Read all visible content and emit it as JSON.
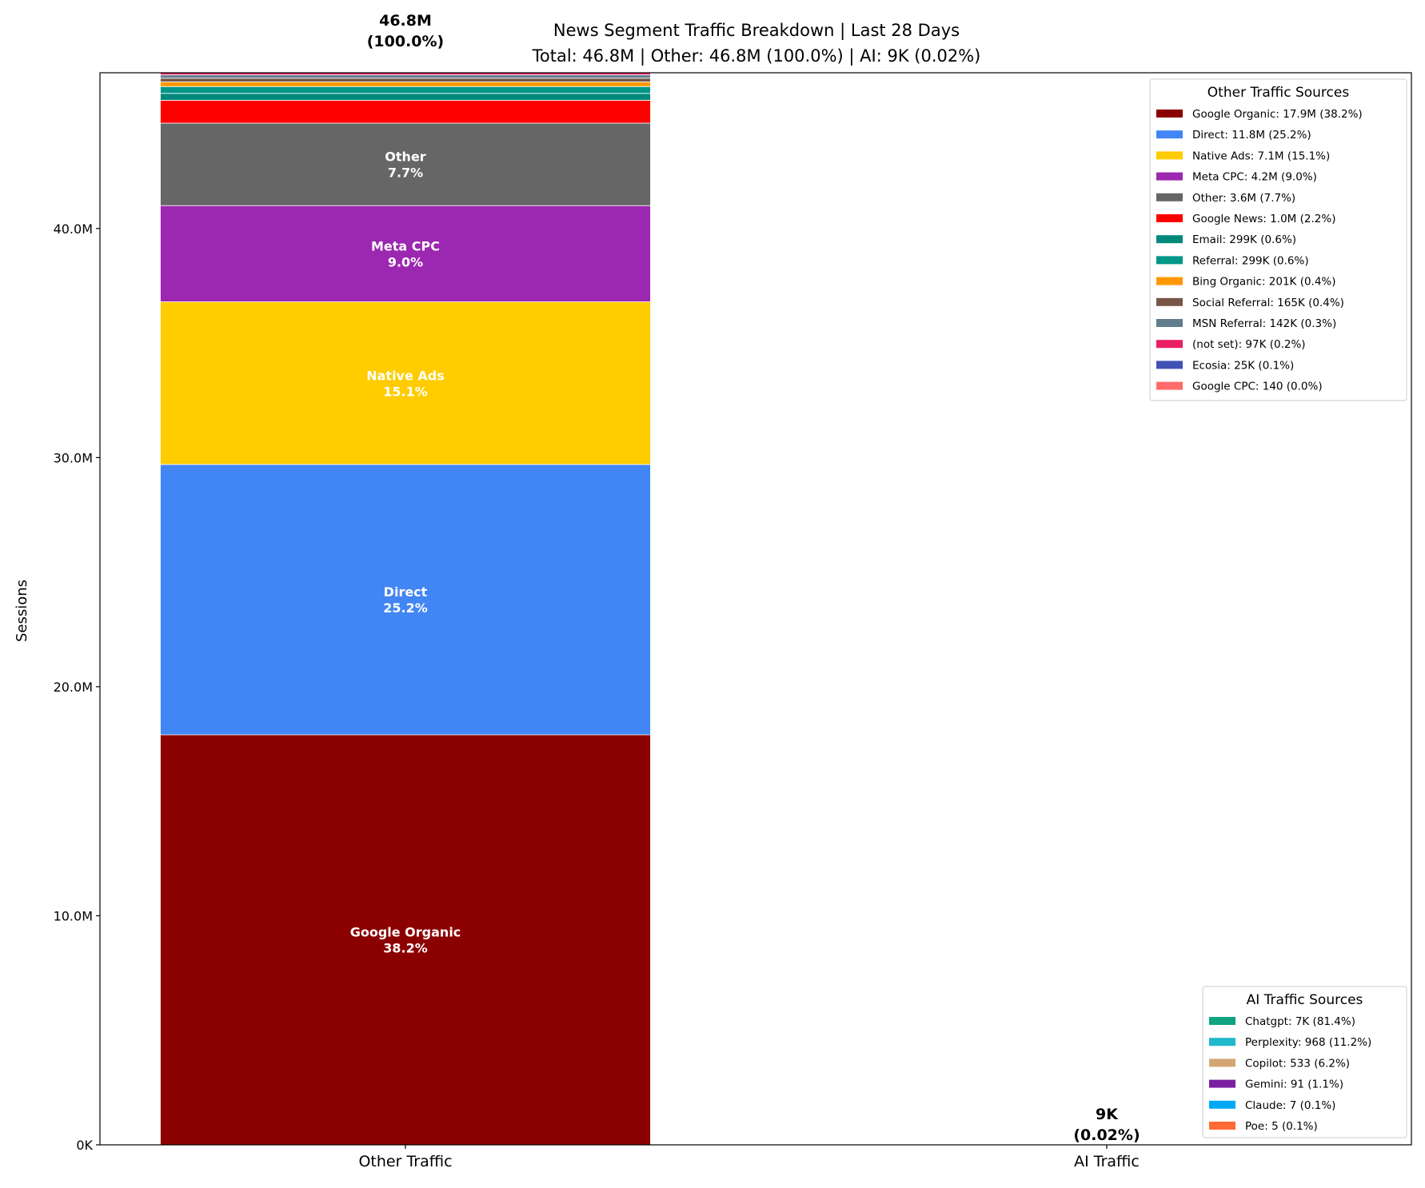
{
  "chart_data": {
    "type": "bar",
    "stacked": true,
    "title": "News Segment Traffic Breakdown | Last 28 Days",
    "subtitle": "Total: 46.8M | Other: 46.8M (100.0%) | AI: 9K (0.02%)",
    "xlabel": "",
    "ylabel": "Sessions",
    "categories": [
      "Other Traffic",
      "AI Traffic"
    ],
    "ylim": [
      0,
      46800000
    ],
    "yticks": [
      0,
      10000000,
      20000000,
      30000000,
      40000000
    ],
    "ytick_labels": [
      "0K",
      "10.0M",
      "20.0M",
      "30.0M",
      "40.0M"
    ],
    "grid": false,
    "bar_totals": [
      {
        "value": "46.8M",
        "percent": "(100.0%)"
      },
      {
        "value": "9K",
        "percent": "(0.02%)"
      }
    ],
    "other_series": {
      "legend_title": "Other Traffic Sources",
      "legend_placement": "upper right",
      "items": [
        {
          "name": "Google Organic",
          "value": 17900000,
          "legend": "Google Organic: 17.9M (38.2%)",
          "label": "Google Organic",
          "pct": "38.2%",
          "color": "#8b0000"
        },
        {
          "name": "Direct",
          "value": 11800000,
          "legend": "Direct: 11.8M (25.2%)",
          "label": "Direct",
          "pct": "25.2%",
          "color": "#4285f4"
        },
        {
          "name": "Native Ads",
          "value": 7100000,
          "legend": "Native Ads: 7.1M (15.1%)",
          "label": "Native Ads",
          "pct": "15.1%",
          "color": "#ffcc00"
        },
        {
          "name": "Meta CPC",
          "value": 4200000,
          "legend": "Meta CPC: 4.2M (9.0%)",
          "label": "Meta CPC",
          "pct": "9.0%",
          "color": "#9c27b0"
        },
        {
          "name": "Other",
          "value": 3600000,
          "legend": "Other: 3.6M (7.7%)",
          "label": "Other",
          "pct": "7.7%",
          "color": "#666666"
        },
        {
          "name": "Google News",
          "value": 1000000,
          "legend": "Google News: 1.0M (2.2%)",
          "color": "#ff0000"
        },
        {
          "name": "Email",
          "value": 299000,
          "legend": "Email: 299K (0.6%)",
          "color": "#00897b"
        },
        {
          "name": "Referral",
          "value": 299000,
          "legend": "Referral: 299K (0.6%)",
          "color": "#009688"
        },
        {
          "name": "Bing Organic",
          "value": 201000,
          "legend": "Bing Organic: 201K (0.4%)",
          "color": "#ff9800"
        },
        {
          "name": "Social Referral",
          "value": 165000,
          "legend": "Social Referral: 165K (0.4%)",
          "color": "#795548"
        },
        {
          "name": "MSN Referral",
          "value": 142000,
          "legend": "MSN Referral: 142K (0.3%)",
          "color": "#607d8b"
        },
        {
          "name": "(not set)",
          "value": 97000,
          "legend": "(not set): 97K (0.2%)",
          "color": "#e91e63"
        },
        {
          "name": "Ecosia",
          "value": 25000,
          "legend": "Ecosia: 25K (0.1%)",
          "color": "#3f51b5"
        },
        {
          "name": "Google CPC",
          "value": 140,
          "legend": "Google CPC: 140 (0.0%)",
          "color": "#ff6b6b"
        }
      ]
    },
    "ai_series": {
      "legend_title": "AI Traffic Sources",
      "legend_placement": "lower right",
      "items": [
        {
          "name": "Chatgpt",
          "value": 7000,
          "legend": "Chatgpt: 7K (81.4%)",
          "color": "#10a37f"
        },
        {
          "name": "Perplexity",
          "value": 968,
          "legend": "Perplexity: 968 (11.2%)",
          "color": "#20b8cd"
        },
        {
          "name": "Copilot",
          "value": 533,
          "legend": "Copilot: 533 (6.2%)",
          "color": "#d4a574"
        },
        {
          "name": "Gemini",
          "value": 91,
          "legend": "Gemini: 91 (1.1%)",
          "color": "#7b1fa2"
        },
        {
          "name": "Claude",
          "value": 7,
          "legend": "Claude: 7 (0.1%)",
          "color": "#03a9f4"
        },
        {
          "name": "Poe",
          "value": 5,
          "legend": "Poe: 5 (0.1%)",
          "color": "#ff6b35"
        }
      ]
    }
  }
}
